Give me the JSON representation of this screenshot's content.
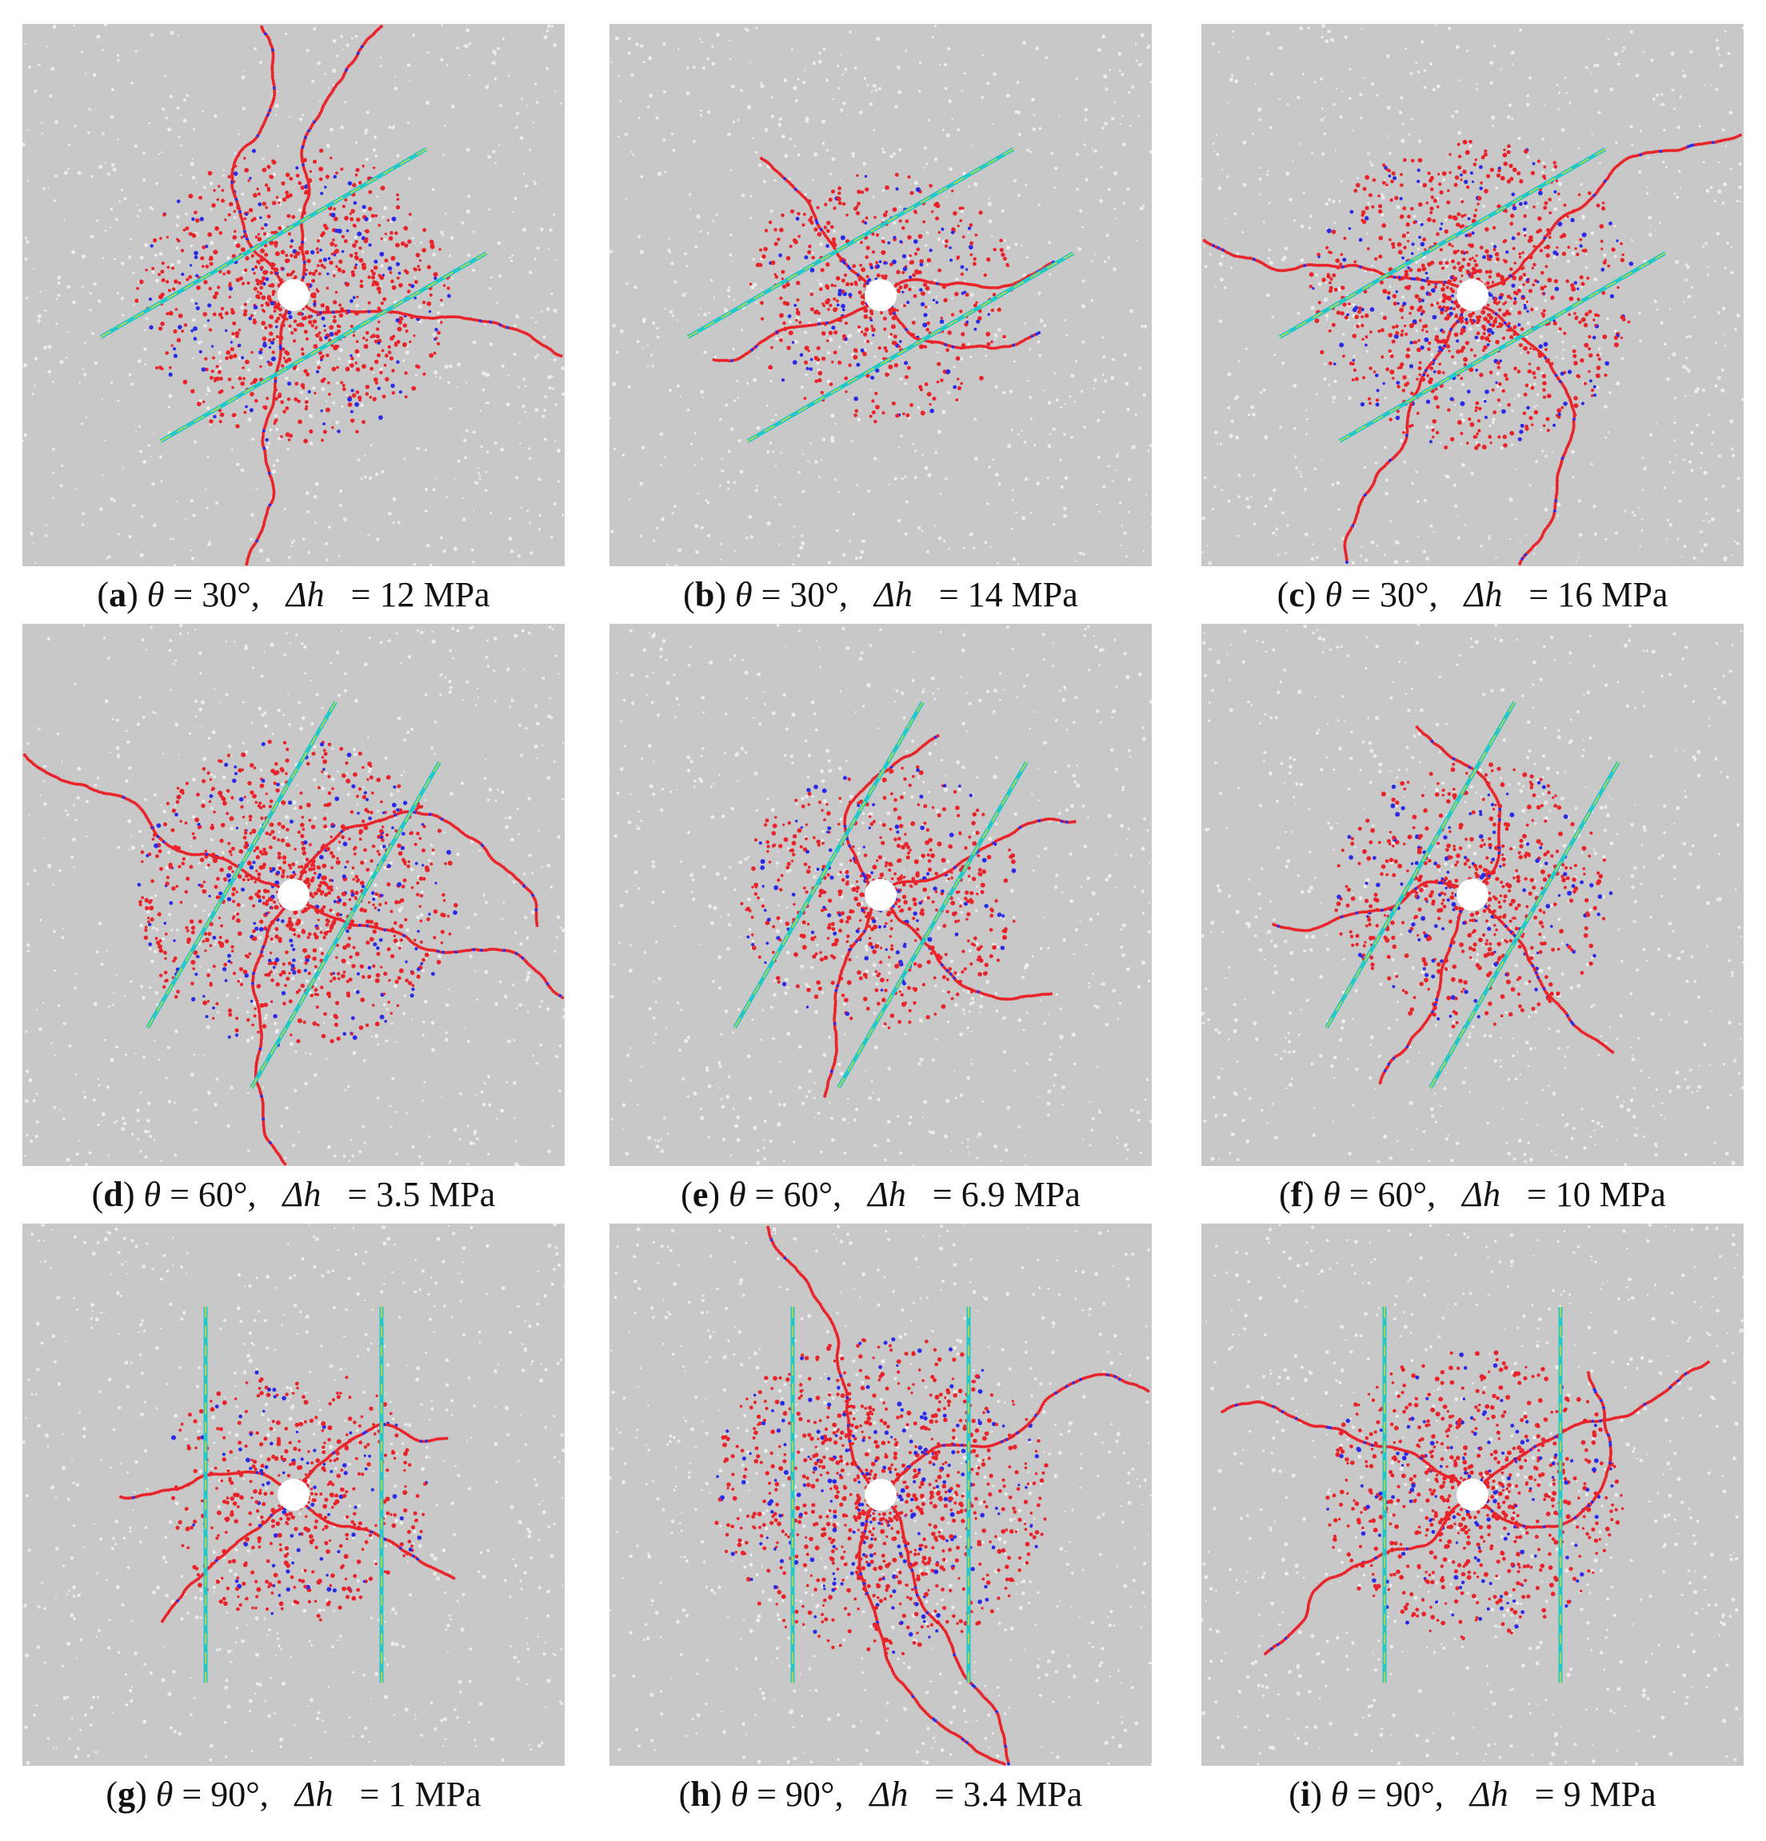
{
  "figure": {
    "panels": [
      {
        "letter": "a",
        "theta": "30°",
        "dh": "12 MPa",
        "angle": 30,
        "spread": 1.0
      },
      {
        "letter": "b",
        "theta": "30°",
        "dh": "14 MPa",
        "angle": 30,
        "spread": 0.6
      },
      {
        "letter": "c",
        "theta": "30°",
        "dh": "16 MPa",
        "angle": 30,
        "spread": 1.1
      },
      {
        "letter": "d",
        "theta": "60°",
        "dh": "3.5 MPa",
        "angle": 60,
        "spread": 1.1
      },
      {
        "letter": "e",
        "theta": "60°",
        "dh": "6.9 MPa",
        "angle": 60,
        "spread": 0.7
      },
      {
        "letter": "f",
        "theta": "60°",
        "dh": "10 MPa",
        "angle": 60,
        "spread": 0.7
      },
      {
        "letter": "g",
        "theta": "90°",
        "dh": "1 MPa",
        "angle": 90,
        "spread": 0.6
      },
      {
        "letter": "h",
        "theta": "90°",
        "dh": "3.4 MPa",
        "angle": 90,
        "spread": 1.2
      },
      {
        "letter": "i",
        "theta": "90°",
        "dh": "9 MPa",
        "angle": 90,
        "spread": 0.9
      }
    ],
    "symbols": {
      "theta": "θ",
      "delta_h": "Δh",
      "equals": "="
    },
    "colors": {
      "background": "#c8c8c8",
      "tensile_crack": "#e8242a",
      "shear_crack": "#2a2ae8",
      "joint": "#22c8c8",
      "joint_alt": "#d8d832",
      "hole": "#ffffff"
    }
  }
}
